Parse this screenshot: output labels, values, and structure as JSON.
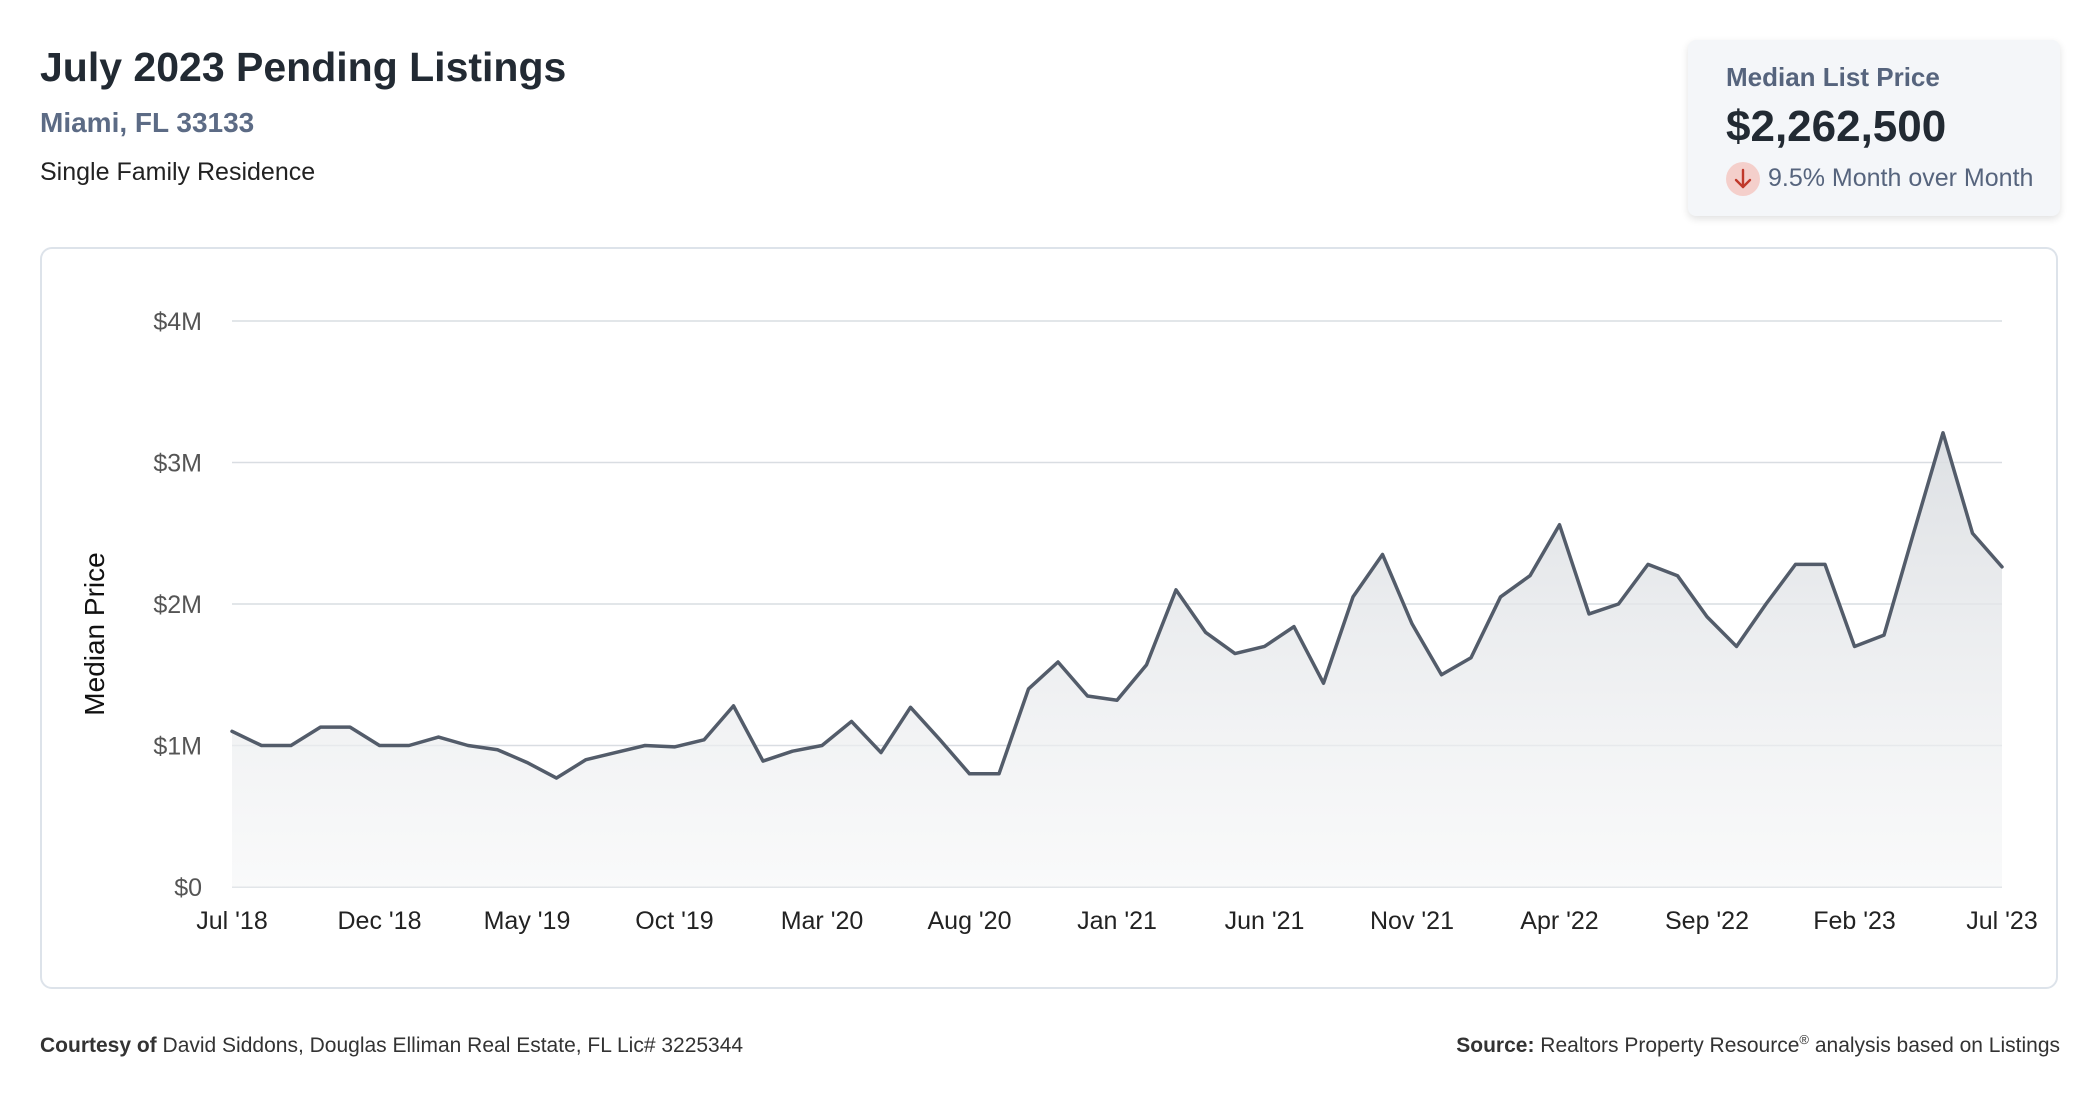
{
  "header": {
    "title": "July 2023 Pending Listings",
    "location": "Miami, FL 33133",
    "property_type": "Single Family Residence"
  },
  "stat": {
    "label": "Median List Price",
    "value": "$2,262,500",
    "change_text": "9.5% Month over Month",
    "change_icon": "arrow-down-icon",
    "change_color": "#c0392b"
  },
  "footer": {
    "courtesy_label": "Courtesy of",
    "courtesy_text": "David Siddons, Douglas Elliman Real Estate, FL Lic# 3225344",
    "source_label": "Source:",
    "source_name": "Realtors Property Resource",
    "source_mark": "®",
    "source_text": "analysis based on Listings"
  },
  "colors": {
    "line": "#535c6a",
    "grid": "#d9dde2",
    "axis_text": "#555555"
  },
  "chart_data": {
    "type": "area",
    "ylabel": "Median Price",
    "xlabel": "",
    "ylim": [
      0,
      4000000
    ],
    "y_ticks": [
      0,
      1000000,
      2000000,
      3000000,
      4000000
    ],
    "y_tick_labels": [
      "$0",
      "$1M",
      "$2M",
      "$3M",
      "$4M"
    ],
    "x_tick_labels": [
      "Jul '18",
      "Dec '18",
      "May '19",
      "Oct '19",
      "Mar '20",
      "Aug '20",
      "Jan '21",
      "Jun '21",
      "Nov '21",
      "Apr '22",
      "Sep '22",
      "Feb '23",
      "Jul '23"
    ],
    "x_tick_every": 5,
    "grid": true,
    "series": [
      {
        "values": [
          1100000,
          1000000,
          1000000,
          1130000,
          1130000,
          1000000,
          1000000,
          1060000,
          1000000,
          970000,
          880000,
          770000,
          900000,
          950000,
          1000000,
          990000,
          1040000,
          1280000,
          890000,
          960000,
          1000000,
          1170000,
          950000,
          1270000,
          1040000,
          800000,
          800000,
          1400000,
          1590000,
          1350000,
          1320000,
          1570000,
          2100000,
          1800000,
          1650000,
          1700000,
          1840000,
          1440000,
          2050000,
          2350000,
          1860000,
          1500000,
          1620000,
          2050000,
          2200000,
          2560000,
          1930000,
          2000000,
          2280000,
          2200000,
          1910000,
          1700000,
          2000000,
          2280000,
          2280000,
          1700000,
          1780000,
          2500000,
          3210000,
          2500000,
          2262500
        ]
      }
    ]
  }
}
